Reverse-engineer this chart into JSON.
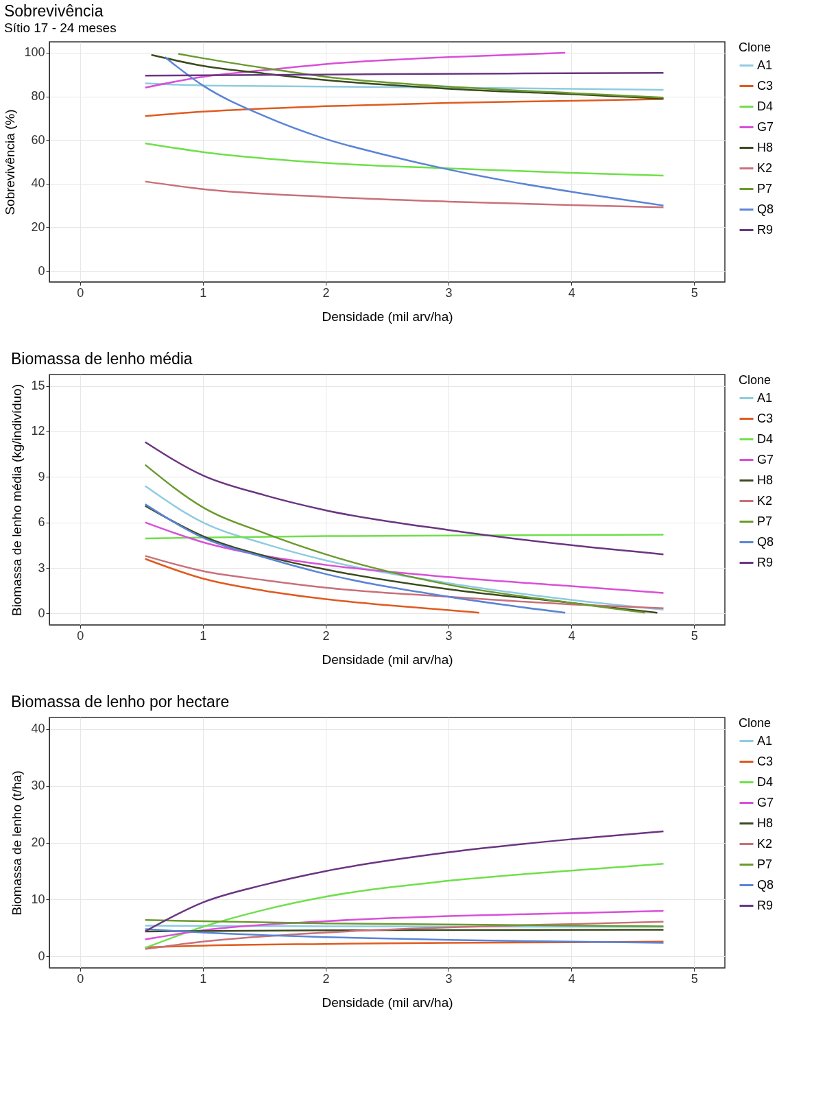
{
  "chart_data": [
    {
      "type": "line",
      "title": "Sobrevivência",
      "subtitle": "Sítio 17 - 24 meses",
      "xlabel": "Densidade (mil arv/ha)",
      "ylabel": "Sobrevivência (%)",
      "legend_title": "Clone",
      "legend": "right",
      "grid": true,
      "xlim": [
        -0.25,
        5.25
      ],
      "xticks": [
        0,
        1,
        2,
        3,
        4,
        5
      ],
      "ylim": [
        -5,
        105
      ],
      "yticks": [
        0,
        20,
        40,
        60,
        80,
        100
      ],
      "series": [
        {
          "name": "A1",
          "color": "#8ecbe0",
          "x": [
            0.53,
            1,
            2,
            3,
            4,
            4.75
          ],
          "values": [
            86,
            85,
            84.5,
            84,
            83.5,
            83
          ]
        },
        {
          "name": "C3",
          "color": "#e05a1e",
          "x": [
            0.53,
            1,
            2,
            3,
            4,
            4.75
          ],
          "values": [
            71,
            73,
            75.5,
            77,
            78,
            78.8
          ]
        },
        {
          "name": "D4",
          "color": "#6ee04a",
          "x": [
            0.53,
            1,
            2,
            3,
            4,
            4.75
          ],
          "values": [
            58.5,
            54.5,
            49.5,
            47,
            45,
            43.7
          ]
        },
        {
          "name": "G7",
          "color": "#d94fd9",
          "x": [
            0.53,
            1,
            1.5,
            2,
            3,
            3.95
          ],
          "values": [
            84,
            89,
            92,
            94.8,
            98,
            100
          ]
        },
        {
          "name": "H8",
          "color": "#3b4a1e",
          "x": [
            0.58,
            1,
            1.5,
            2,
            3,
            4,
            4.75
          ],
          "values": [
            99,
            94,
            90.5,
            87.5,
            83.5,
            81,
            79
          ]
        },
        {
          "name": "K2",
          "color": "#c9707a",
          "x": [
            0.53,
            1,
            2,
            3,
            4,
            4.75
          ],
          "values": [
            41,
            37.5,
            34,
            31.8,
            30.2,
            29.2
          ]
        },
        {
          "name": "P7",
          "color": "#6a9a2e",
          "x": [
            0.8,
            1,
            1.5,
            2,
            3,
            4,
            4.75
          ],
          "values": [
            99.5,
            97.5,
            93,
            89,
            84.5,
            81.5,
            79.5
          ]
        },
        {
          "name": "Q8",
          "color": "#5b84d6",
          "x": [
            0.69,
            1,
            1.5,
            2,
            2.5,
            3,
            3.5,
            4,
            4.75
          ],
          "values": [
            98,
            85,
            71,
            60.5,
            53,
            46.5,
            41,
            36.3,
            30
          ]
        },
        {
          "name": "R9",
          "color": "#6a3580",
          "x": [
            0.53,
            2.5,
            4.75
          ],
          "values": [
            89.5,
            90.2,
            90.8
          ]
        }
      ]
    },
    {
      "type": "line",
      "title": "Biomassa de lenho média",
      "xlabel": "Densidade (mil arv/ha)",
      "ylabel": "Biomassa de lenho média (kg/indivíduo)",
      "legend_title": "Clone",
      "legend": "right",
      "grid": true,
      "xlim": [
        -0.25,
        5.25
      ],
      "xticks": [
        0,
        1,
        2,
        3,
        4,
        5
      ],
      "ylim": [
        -0.75,
        15.75
      ],
      "yticks": [
        0,
        3,
        6,
        9,
        12,
        15
      ],
      "series": [
        {
          "name": "A1",
          "color": "#8ecbe0",
          "x": [
            0.53,
            1,
            1.5,
            2,
            3,
            4,
            4.75
          ],
          "values": [
            8.4,
            6.0,
            4.6,
            3.5,
            2.0,
            0.9,
            0.25
          ]
        },
        {
          "name": "C3",
          "color": "#e05a1e",
          "x": [
            0.53,
            1,
            1.5,
            2,
            2.5,
            3,
            3.25
          ],
          "values": [
            3.6,
            2.3,
            1.5,
            0.95,
            0.55,
            0.22,
            0.05
          ]
        },
        {
          "name": "D4",
          "color": "#6ee04a",
          "x": [
            0.53,
            2,
            4.75
          ],
          "values": [
            4.95,
            5.1,
            5.2
          ]
        },
        {
          "name": "G7",
          "color": "#d94fd9",
          "x": [
            0.53,
            1,
            1.5,
            2,
            3,
            4,
            4.75
          ],
          "values": [
            6.0,
            4.7,
            3.8,
            3.2,
            2.4,
            1.8,
            1.35
          ]
        },
        {
          "name": "H8",
          "color": "#3b4a1e",
          "x": [
            0.53,
            1,
            1.5,
            2,
            3,
            4,
            4.7
          ],
          "values": [
            7.1,
            5.1,
            3.8,
            2.9,
            1.6,
            0.7,
            0.05
          ]
        },
        {
          "name": "K2",
          "color": "#c9707a",
          "x": [
            0.53,
            1,
            1.5,
            2,
            3,
            4,
            4.75
          ],
          "values": [
            3.8,
            2.8,
            2.2,
            1.7,
            1.1,
            0.6,
            0.35
          ]
        },
        {
          "name": "P7",
          "color": "#6a9a2e",
          "x": [
            0.53,
            1,
            1.5,
            2,
            3,
            4,
            4.6
          ],
          "values": [
            9.8,
            7.0,
            5.3,
            3.9,
            1.9,
            0.7,
            0.05
          ]
        },
        {
          "name": "Q8",
          "color": "#5b84d6",
          "x": [
            0.53,
            1,
            1.5,
            2,
            3,
            3.95
          ],
          "values": [
            7.2,
            5.0,
            3.7,
            2.6,
            1.1,
            0.05
          ]
        },
        {
          "name": "R9",
          "color": "#6a3580",
          "x": [
            0.53,
            1,
            1.5,
            2,
            3,
            4,
            4.75
          ],
          "values": [
            11.3,
            9.1,
            7.8,
            6.8,
            5.5,
            4.5,
            3.9
          ]
        }
      ]
    },
    {
      "type": "line",
      "title": "Biomassa de lenho por hectare",
      "xlabel": "Densidade (mil arv/ha)",
      "ylabel": "Biomassa de lenho (t/ha)",
      "legend_title": "Clone",
      "legend": "right",
      "grid": true,
      "xlim": [
        -0.25,
        5.25
      ],
      "xticks": [
        0,
        1,
        2,
        3,
        4,
        5
      ],
      "ylim": [
        -2,
        42
      ],
      "yticks": [
        0,
        10,
        20,
        30,
        40
      ],
      "series": [
        {
          "name": "A1",
          "color": "#8ecbe0",
          "x": [
            0.53,
            2,
            4.75
          ],
          "values": [
            5.4,
            5.3,
            5.2
          ]
        },
        {
          "name": "C3",
          "color": "#e05a1e",
          "x": [
            0.53,
            1,
            2,
            3,
            4,
            4.75
          ],
          "values": [
            1.6,
            1.9,
            2.2,
            2.4,
            2.5,
            2.6
          ]
        },
        {
          "name": "D4",
          "color": "#6ee04a",
          "x": [
            0.53,
            1,
            1.5,
            2,
            3,
            4,
            4.75
          ],
          "values": [
            1.5,
            5.2,
            8.2,
            10.5,
            13.3,
            15.1,
            16.3
          ]
        },
        {
          "name": "G7",
          "color": "#d94fd9",
          "x": [
            0.53,
            1,
            2,
            3,
            4,
            4.75
          ],
          "values": [
            3.0,
            4.6,
            6.2,
            7.1,
            7.6,
            8.0
          ]
        },
        {
          "name": "H8",
          "color": "#3b4a1e",
          "x": [
            0.53,
            2,
            4.75
          ],
          "values": [
            4.4,
            4.6,
            4.7
          ]
        },
        {
          "name": "K2",
          "color": "#c9707a",
          "x": [
            0.53,
            1,
            2,
            3,
            4,
            4.75
          ],
          "values": [
            1.3,
            2.6,
            4.2,
            5.1,
            5.7,
            6.1
          ]
        },
        {
          "name": "P7",
          "color": "#6a9a2e",
          "x": [
            0.53,
            2,
            4.75
          ],
          "values": [
            6.4,
            5.8,
            5.3
          ]
        },
        {
          "name": "Q8",
          "color": "#5b84d6",
          "x": [
            0.53,
            1,
            2,
            3,
            4,
            4.75
          ],
          "values": [
            4.8,
            4.2,
            3.4,
            2.9,
            2.6,
            2.4
          ]
        },
        {
          "name": "R9",
          "color": "#6a3580",
          "x": [
            0.53,
            1,
            1.5,
            2,
            3,
            4,
            4.75
          ],
          "values": [
            4.4,
            9.5,
            12.6,
            15.0,
            18.3,
            20.6,
            22.0
          ]
        }
      ]
    }
  ]
}
